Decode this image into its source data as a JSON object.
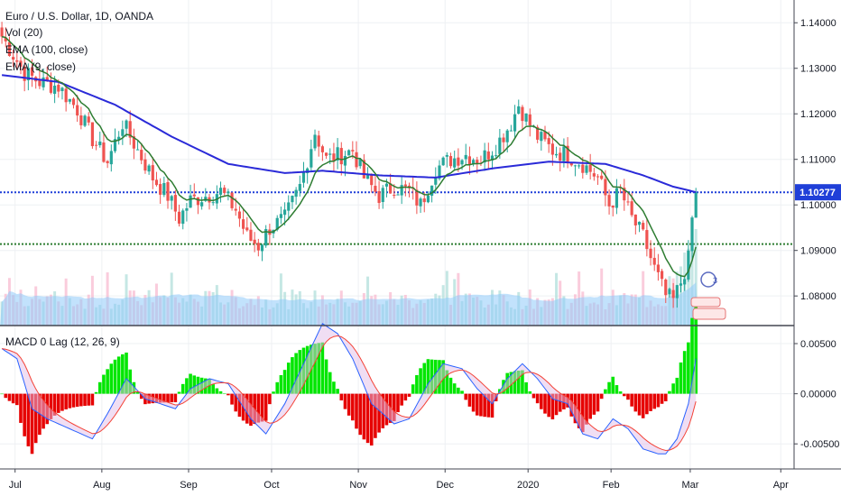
{
  "header": {
    "symbol_title": "Euro / U.S. Dollar, 1D, OANDA",
    "indicators": [
      "Vol (20)",
      "EMA (100, close)",
      "EMA (9, close)"
    ],
    "macd_title": "MACD 0 Lag (12, 26, 9)"
  },
  "badges": {
    "count": "3"
  },
  "colors": {
    "up": "#26a69a",
    "down": "#ef5350",
    "ema100": "#2a2ad8",
    "ema9": "#2e7d32",
    "price_line": "#1f3fd8",
    "support_line": "#2e7d32",
    "volume_ma": "#90caf9",
    "macd_pos": "#00e600",
    "macd_neg": "#e60000",
    "macd_line": "#2962ff",
    "signal_line": "#f44336"
  },
  "chart_data": [
    {
      "type": "candlestick",
      "title": "Euro / U.S. Dollar, 1D, OANDA",
      "x_tick_labels": [
        "Jul",
        "Aug",
        "Sep",
        "Oct",
        "Nov",
        "Dec",
        "2020",
        "Feb",
        "Mar",
        "Apr"
      ],
      "y_tick_labels": [
        "1.14000",
        "1.13000",
        "1.12000",
        "1.11000",
        "1.10000",
        "1.09000",
        "1.08000"
      ],
      "ylim": [
        1.0735,
        1.145
      ],
      "last_price": 1.10277,
      "last_price_label": "1.10277",
      "support_level": 1.0914,
      "close_anchors": [
        [
          0,
          1.137
        ],
        [
          3,
          1.133
        ],
        [
          6,
          1.129
        ],
        [
          10,
          1.127
        ],
        [
          15,
          1.126
        ],
        [
          20,
          1.121
        ],
        [
          24,
          1.1145
        ],
        [
          28,
          1.1095
        ],
        [
          32,
          1.118
        ],
        [
          36,
          1.112
        ],
        [
          40,
          1.106
        ],
        [
          44,
          1.102
        ],
        [
          47,
          1.097
        ],
        [
          50,
          1.101
        ],
        [
          54,
          1.102
        ],
        [
          58,
          1.103
        ],
        [
          62,
          1.099
        ],
        [
          65,
          1.093
        ],
        [
          68,
          1.091
        ],
        [
          71,
          1.095
        ],
        [
          75,
          1.097
        ],
        [
          79,
          1.104
        ],
        [
          83,
          1.116
        ],
        [
          86,
          1.11
        ],
        [
          90,
          1.111
        ],
        [
          93,
          1.112
        ],
        [
          96,
          1.106
        ],
        [
          100,
          1.102
        ],
        [
          104,
          1.104
        ],
        [
          108,
          1.103
        ],
        [
          111,
          1.1
        ],
        [
          115,
          1.108
        ],
        [
          119,
          1.11
        ],
        [
          123,
          1.111
        ],
        [
          127,
          1.11
        ],
        [
          131,
          1.113
        ],
        [
          135,
          1.118
        ],
        [
          137,
          1.122
        ],
        [
          139,
          1.119
        ],
        [
          142,
          1.115
        ],
        [
          146,
          1.112
        ],
        [
          150,
          1.111
        ],
        [
          154,
          1.109
        ],
        [
          158,
          1.106
        ],
        [
          161,
          1.1
        ],
        [
          164,
          1.103
        ],
        [
          167,
          1.097
        ],
        [
          170,
          1.093
        ],
        [
          173,
          1.086
        ],
        [
          176,
          1.08
        ],
        [
          178,
          1.079
        ],
        [
          180,
          1.083
        ],
        [
          182,
          1.088
        ],
        [
          183,
          1.097
        ],
        [
          184,
          1.1028
        ]
      ],
      "ema100_anchors": [
        [
          0,
          1.1285
        ],
        [
          15,
          1.127
        ],
        [
          30,
          1.122
        ],
        [
          45,
          1.115
        ],
        [
          60,
          1.109
        ],
        [
          75,
          1.107
        ],
        [
          85,
          1.1075
        ],
        [
          100,
          1.1065
        ],
        [
          115,
          1.106
        ],
        [
          130,
          1.108
        ],
        [
          145,
          1.1095
        ],
        [
          160,
          1.109
        ],
        [
          170,
          1.1065
        ],
        [
          178,
          1.104
        ],
        [
          184,
          1.1028
        ]
      ]
    },
    {
      "type": "macd",
      "title": "MACD 0 Lag (12, 26, 9)",
      "y_tick_labels": [
        "0.00500",
        "0.00000",
        "-0.00500"
      ],
      "ylim": [
        -0.0075,
        0.0068
      ],
      "macd_anchors": [
        [
          0,
          0.0045
        ],
        [
          4,
          0.0035
        ],
        [
          8,
          -0.0015
        ],
        [
          12,
          -0.0025
        ],
        [
          18,
          -0.0035
        ],
        [
          24,
          -0.0045
        ],
        [
          28,
          -0.002
        ],
        [
          33,
          0.0015
        ],
        [
          38,
          -0.0005
        ],
        [
          42,
          -0.001
        ],
        [
          46,
          -0.0015
        ],
        [
          50,
          0.0005
        ],
        [
          55,
          0.0015
        ],
        [
          60,
          0.001
        ],
        [
          66,
          -0.0025
        ],
        [
          70,
          -0.004
        ],
        [
          75,
          -0.001
        ],
        [
          80,
          0.003
        ],
        [
          85,
          0.007
        ],
        [
          89,
          0.006
        ],
        [
          93,
          0.0035
        ],
        [
          98,
          -0.001
        ],
        [
          104,
          -0.003
        ],
        [
          108,
          -0.0025
        ],
        [
          113,
          0.001
        ],
        [
          117,
          0.003
        ],
        [
          122,
          0.0025
        ],
        [
          126,
          0.0005
        ],
        [
          130,
          -0.001
        ],
        [
          134,
          0.0015
        ],
        [
          138,
          0.003
        ],
        [
          142,
          0.0015
        ],
        [
          146,
          -0.0005
        ],
        [
          150,
          -0.001
        ],
        [
          154,
          -0.004
        ],
        [
          158,
          -0.0045
        ],
        [
          162,
          -0.0025
        ],
        [
          166,
          -0.0035
        ],
        [
          170,
          -0.0055
        ],
        [
          174,
          -0.006
        ],
        [
          176,
          -0.006
        ],
        [
          179,
          -0.0045
        ],
        [
          182,
          -0.001
        ],
        [
          184,
          0.0035
        ]
      ]
    }
  ]
}
